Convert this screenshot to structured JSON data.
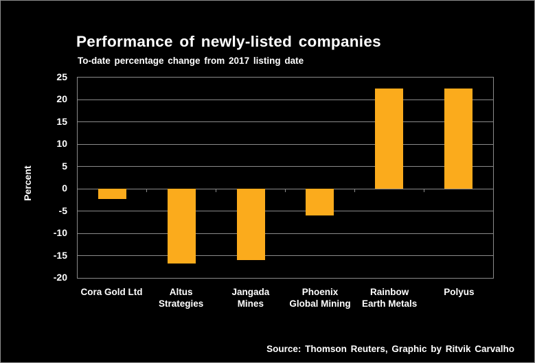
{
  "chart_data": {
    "type": "bar",
    "title": "Performance of newly-listed companies",
    "subtitle": "To-date percentage change from 2017 listing date",
    "ylabel": "Percent",
    "xlabel": "",
    "categories": [
      "Cora Gold Ltd",
      "Altus Strategies",
      "Jangada Mines",
      "Phoenix Global Mining",
      "Rainbow Earth Metals",
      "Polyus"
    ],
    "category_label_lines": [
      [
        "Cora Gold Ltd"
      ],
      [
        "Altus",
        "Strategies"
      ],
      [
        "Jangada",
        "Mines"
      ],
      [
        "Phoenix",
        "Global Mining"
      ],
      [
        "Rainbow",
        "Earth Metals"
      ],
      [
        "Polyus"
      ]
    ],
    "values": [
      -2.3,
      -16.7,
      -16.0,
      -6.0,
      22.5,
      22.5
    ],
    "unit": "percent",
    "ylim": [
      -20,
      25
    ],
    "yticks": [
      25,
      20,
      15,
      10,
      5,
      0,
      -5,
      -10,
      -15,
      -20
    ],
    "grid": true,
    "legend": false,
    "bar_color": "#FBAB1C",
    "grid_color": "#8C8C8C",
    "background_color": "#000000",
    "text_color": "#FFFFFF"
  },
  "footer": {
    "source": "Source: Thomson Reuters, Graphic by Ritvik Carvalho"
  }
}
